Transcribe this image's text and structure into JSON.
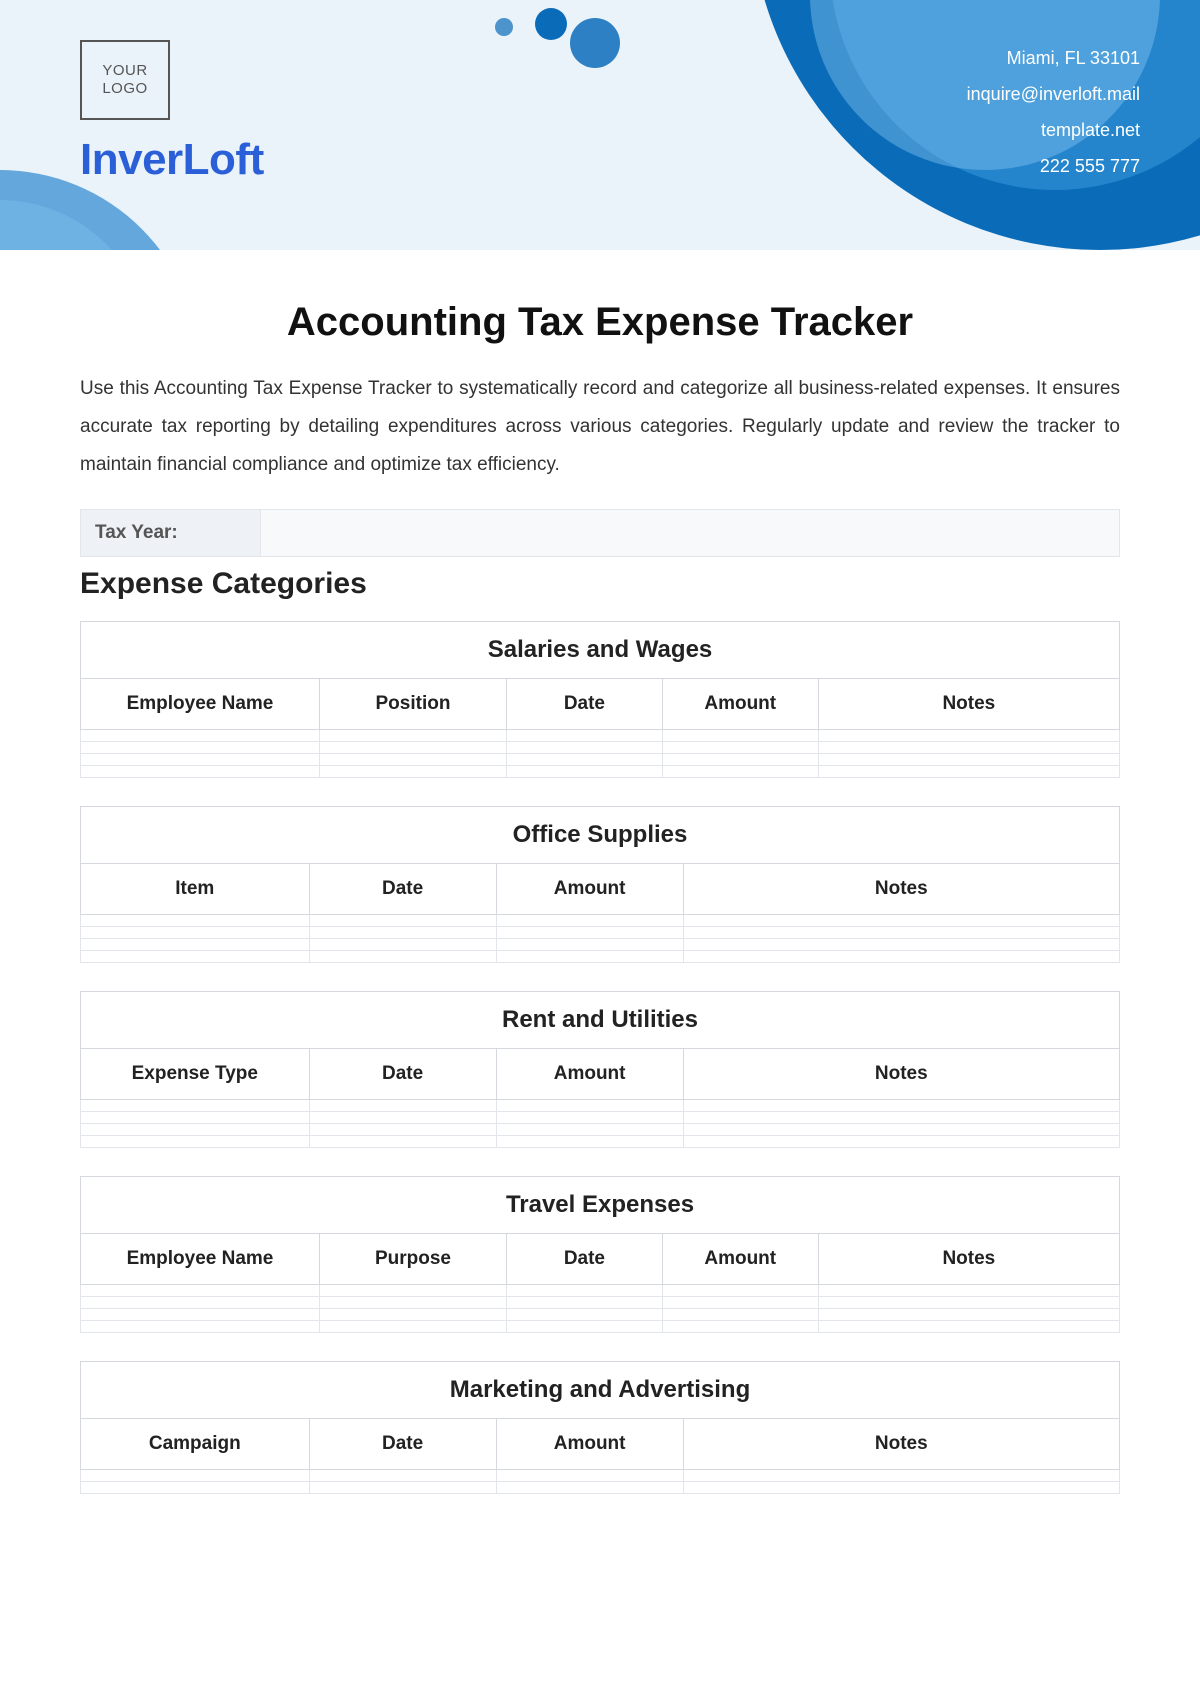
{
  "header": {
    "logo_placeholder": "YOUR\nLOGO",
    "company_name": "InverLoft",
    "contact": {
      "address": "Miami, FL 33101",
      "email": "inquire@inverloft.mail",
      "website": "template.net",
      "phone": "222 555 777"
    },
    "colors": {
      "bg": "#eaf2fa",
      "primary": "#0a6cb8",
      "brand_text": "#2a5fd8"
    }
  },
  "document": {
    "title": "Accounting Tax Expense Tracker",
    "intro": "Use this Accounting Tax Expense Tracker to systematically record and categorize all business-related expenses. It ensures accurate tax reporting by detailing expenditures across various categories. Regularly update and review the tracker to maintain financial compliance and optimize tax efficiency.",
    "tax_year_label": "Tax Year:",
    "tax_year_value": "",
    "section_heading": "Expense Categories",
    "categories": [
      {
        "title": "Salaries and Wages",
        "columns": [
          "Employee Name",
          "Position",
          "Date",
          "Amount",
          "Notes"
        ],
        "col_widths": [
          "23%",
          "18%",
          "15%",
          "15%",
          "29%"
        ],
        "blank_rows": 4
      },
      {
        "title": "Office Supplies",
        "columns": [
          "Item",
          "Date",
          "Amount",
          "Notes"
        ],
        "col_widths": [
          "22%",
          "18%",
          "18%",
          "42%"
        ],
        "blank_rows": 4
      },
      {
        "title": "Rent and Utilities",
        "columns": [
          "Expense Type",
          "Date",
          "Amount",
          "Notes"
        ],
        "col_widths": [
          "22%",
          "18%",
          "18%",
          "42%"
        ],
        "blank_rows": 4
      },
      {
        "title": "Travel Expenses",
        "columns": [
          "Employee Name",
          "Purpose",
          "Date",
          "Amount",
          "Notes"
        ],
        "col_widths": [
          "23%",
          "18%",
          "15%",
          "15%",
          "29%"
        ],
        "blank_rows": 4
      },
      {
        "title": "Marketing and Advertising",
        "columns": [
          "Campaign",
          "Date",
          "Amount",
          "Notes"
        ],
        "col_widths": [
          "22%",
          "18%",
          "18%",
          "42%"
        ],
        "blank_rows": 2
      }
    ]
  }
}
